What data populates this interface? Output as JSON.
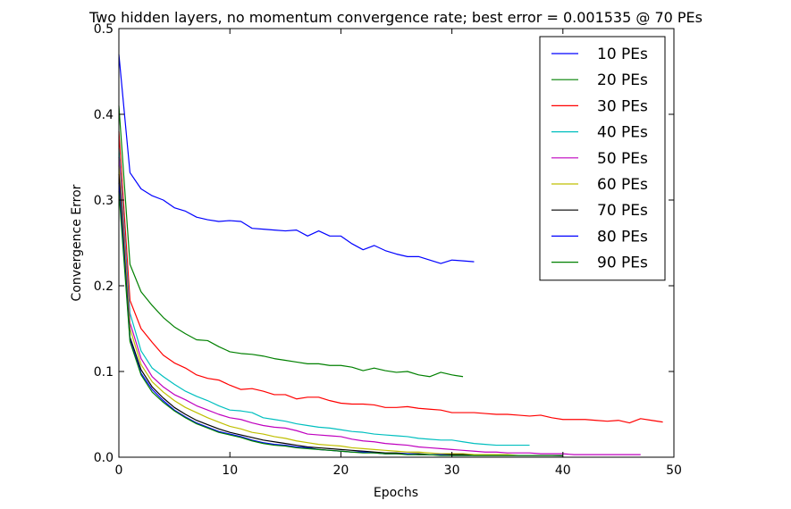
{
  "chart_data": {
    "type": "line",
    "title": "Two hidden layers, no momentum convergence rate; best error = 0.001535 @ 70 PEs",
    "xlabel": "Epochs",
    "ylabel": "Convergence Error",
    "xlim": [
      0,
      50
    ],
    "ylim": [
      0,
      0.5
    ],
    "xticks": [
      0,
      10,
      20,
      30,
      40,
      50
    ],
    "yticks": [
      0.0,
      0.1,
      0.2,
      0.3,
      0.4,
      0.5
    ],
    "xtick_labels": [
      "0",
      "10",
      "20",
      "30",
      "40",
      "50"
    ],
    "ytick_labels": [
      "0.0",
      "0.1",
      "0.2",
      "0.3",
      "0.4",
      "0.5"
    ],
    "grid": false,
    "legend_position": "top-right",
    "series": [
      {
        "name": "10 PEs",
        "color": "#0000ff",
        "x": [
          0,
          1,
          2,
          3,
          4,
          5,
          6,
          7,
          8,
          9,
          10,
          11,
          12,
          13,
          14,
          15,
          16,
          17,
          18,
          19,
          20,
          21,
          22,
          23,
          24,
          25,
          26,
          27,
          28,
          29,
          30,
          31,
          32
        ],
        "values": [
          0.47,
          0.332,
          0.313,
          0.305,
          0.3,
          0.291,
          0.287,
          0.28,
          0.277,
          0.275,
          0.276,
          0.275,
          0.267,
          0.266,
          0.265,
          0.264,
          0.265,
          0.258,
          0.264,
          0.258,
          0.258,
          0.249,
          0.242,
          0.247,
          0.241,
          0.237,
          0.234,
          0.234,
          0.23,
          0.226,
          0.23,
          0.229,
          0.228
        ]
      },
      {
        "name": "20 PEs",
        "color": "#008000",
        "x": [
          0,
          1,
          2,
          3,
          4,
          5,
          6,
          7,
          8,
          9,
          10,
          11,
          12,
          13,
          14,
          15,
          16,
          17,
          18,
          19,
          20,
          21,
          22,
          23,
          24,
          25,
          26,
          27,
          28,
          29,
          30,
          31
        ],
        "values": [
          0.41,
          0.225,
          0.193,
          0.177,
          0.163,
          0.152,
          0.144,
          0.137,
          0.136,
          0.129,
          0.123,
          0.121,
          0.12,
          0.118,
          0.115,
          0.113,
          0.111,
          0.109,
          0.109,
          0.107,
          0.107,
          0.105,
          0.101,
          0.104,
          0.101,
          0.099,
          0.1,
          0.096,
          0.094,
          0.099,
          0.096,
          0.094
        ]
      },
      {
        "name": "30 PEs",
        "color": "#ff0000",
        "x": [
          0,
          1,
          2,
          3,
          4,
          5,
          6,
          7,
          8,
          9,
          10,
          11,
          12,
          13,
          14,
          15,
          16,
          17,
          18,
          19,
          20,
          21,
          22,
          23,
          24,
          25,
          26,
          27,
          28,
          29,
          30,
          31,
          32,
          33,
          34,
          35,
          36,
          37,
          38,
          39,
          40,
          41,
          42,
          43,
          44,
          45,
          46,
          47,
          48,
          49
        ],
        "values": [
          0.38,
          0.183,
          0.15,
          0.134,
          0.119,
          0.11,
          0.104,
          0.096,
          0.092,
          0.09,
          0.084,
          0.079,
          0.08,
          0.077,
          0.073,
          0.073,
          0.068,
          0.07,
          0.07,
          0.066,
          0.063,
          0.062,
          0.062,
          0.061,
          0.058,
          0.058,
          0.059,
          0.057,
          0.056,
          0.055,
          0.052,
          0.052,
          0.052,
          0.051,
          0.05,
          0.05,
          0.049,
          0.048,
          0.049,
          0.046,
          0.044,
          0.044,
          0.044,
          0.043,
          0.042,
          0.043,
          0.04,
          0.045,
          0.043,
          0.041
        ]
      },
      {
        "name": "40 PEs",
        "color": "#00bfbf",
        "x": [
          0,
          1,
          2,
          3,
          4,
          5,
          6,
          7,
          8,
          9,
          10,
          11,
          12,
          13,
          14,
          15,
          16,
          17,
          18,
          19,
          20,
          21,
          22,
          23,
          24,
          25,
          26,
          27,
          28,
          29,
          30,
          31,
          32,
          33,
          34,
          35,
          36,
          37
        ],
        "values": [
          0.36,
          0.168,
          0.124,
          0.104,
          0.094,
          0.085,
          0.077,
          0.071,
          0.066,
          0.06,
          0.055,
          0.054,
          0.052,
          0.046,
          0.044,
          0.042,
          0.039,
          0.037,
          0.035,
          0.034,
          0.032,
          0.03,
          0.029,
          0.027,
          0.026,
          0.025,
          0.024,
          0.022,
          0.021,
          0.02,
          0.02,
          0.018,
          0.016,
          0.015,
          0.014,
          0.014,
          0.014,
          0.014
        ]
      },
      {
        "name": "50 PEs",
        "color": "#bf00bf",
        "x": [
          0,
          1,
          2,
          3,
          4,
          5,
          6,
          7,
          8,
          9,
          10,
          11,
          12,
          13,
          14,
          15,
          16,
          17,
          18,
          19,
          20,
          21,
          22,
          23,
          24,
          25,
          26,
          27,
          28,
          29,
          30,
          31,
          32,
          33,
          34,
          35,
          36,
          37,
          38,
          39,
          40,
          41,
          42,
          43,
          44,
          45,
          46,
          47
        ],
        "values": [
          0.35,
          0.157,
          0.115,
          0.094,
          0.082,
          0.073,
          0.067,
          0.06,
          0.055,
          0.05,
          0.046,
          0.044,
          0.04,
          0.037,
          0.035,
          0.034,
          0.031,
          0.027,
          0.026,
          0.025,
          0.024,
          0.021,
          0.019,
          0.018,
          0.016,
          0.015,
          0.014,
          0.012,
          0.011,
          0.01,
          0.009,
          0.008,
          0.007,
          0.006,
          0.006,
          0.005,
          0.005,
          0.005,
          0.004,
          0.004,
          0.004,
          0.003,
          0.003,
          0.003,
          0.003,
          0.003,
          0.003,
          0.003
        ]
      },
      {
        "name": "60 PEs",
        "color": "#bfbf00",
        "x": [
          0,
          1,
          2,
          3,
          4,
          5,
          6,
          7,
          8,
          9,
          10,
          11,
          12,
          13,
          14,
          15,
          16,
          17,
          18,
          19,
          20,
          21,
          22,
          23,
          24,
          25,
          26,
          27,
          28,
          29,
          30,
          31,
          32,
          33,
          34,
          35,
          36,
          37,
          38,
          39,
          40
        ],
        "values": [
          0.34,
          0.15,
          0.108,
          0.088,
          0.076,
          0.066,
          0.058,
          0.052,
          0.046,
          0.041,
          0.036,
          0.033,
          0.029,
          0.027,
          0.024,
          0.022,
          0.019,
          0.017,
          0.015,
          0.014,
          0.013,
          0.011,
          0.01,
          0.009,
          0.008,
          0.007,
          0.006,
          0.006,
          0.005,
          0.004,
          0.004,
          0.004,
          0.003,
          0.003,
          0.003,
          0.003,
          0.002,
          0.002,
          0.002,
          0.002,
          0.002
        ]
      },
      {
        "name": "70 PEs",
        "color": "#000000",
        "x": [
          0,
          1,
          2,
          3,
          4,
          5,
          6,
          7,
          8,
          9,
          10,
          11,
          12,
          13,
          14,
          15,
          16,
          17,
          18,
          19,
          20,
          21,
          22,
          23,
          24,
          25,
          26,
          27,
          28,
          29,
          30,
          31,
          32,
          33,
          34,
          35,
          36,
          37,
          38,
          39,
          40
        ],
        "values": [
          0.33,
          0.14,
          0.102,
          0.082,
          0.069,
          0.058,
          0.05,
          0.043,
          0.038,
          0.033,
          0.029,
          0.026,
          0.023,
          0.02,
          0.018,
          0.016,
          0.014,
          0.012,
          0.011,
          0.01,
          0.009,
          0.008,
          0.007,
          0.006,
          0.005,
          0.005,
          0.004,
          0.004,
          0.003,
          0.003,
          0.003,
          0.003,
          0.002,
          0.002,
          0.002,
          0.002,
          0.002,
          0.002,
          0.002,
          0.002,
          0.0015
        ]
      },
      {
        "name": "80 PEs",
        "color": "#0000ff",
        "x": [
          0,
          1,
          2,
          3,
          4,
          5,
          6,
          7,
          8,
          9,
          10,
          11,
          12,
          13,
          14,
          15,
          16,
          17,
          18,
          19,
          20,
          21,
          22,
          23,
          24,
          25,
          26,
          27,
          28,
          29,
          30,
          31,
          32,
          33,
          34,
          35,
          36,
          37,
          38,
          39,
          40
        ],
        "values": [
          0.32,
          0.137,
          0.098,
          0.079,
          0.066,
          0.055,
          0.047,
          0.04,
          0.035,
          0.03,
          0.027,
          0.024,
          0.02,
          0.017,
          0.015,
          0.014,
          0.012,
          0.011,
          0.009,
          0.008,
          0.007,
          0.006,
          0.006,
          0.005,
          0.004,
          0.004,
          0.004,
          0.003,
          0.003,
          0.003,
          0.002,
          0.002,
          0.002,
          0.002,
          0.002,
          0.002,
          0.002,
          0.002,
          0.002,
          0.002,
          0.002
        ]
      },
      {
        "name": "90 PEs",
        "color": "#008000",
        "x": [
          0,
          1,
          2,
          3,
          4,
          5,
          6,
          7,
          8,
          9,
          10,
          11,
          12,
          13,
          14,
          15,
          16,
          17,
          18,
          19,
          20,
          21,
          22,
          23,
          24,
          25,
          26,
          27,
          28,
          29,
          30,
          31,
          32,
          33,
          34,
          35,
          36,
          37,
          38,
          39,
          40
        ],
        "values": [
          0.31,
          0.135,
          0.096,
          0.076,
          0.064,
          0.054,
          0.046,
          0.039,
          0.034,
          0.029,
          0.026,
          0.023,
          0.019,
          0.016,
          0.014,
          0.013,
          0.011,
          0.01,
          0.009,
          0.008,
          0.007,
          0.006,
          0.005,
          0.005,
          0.004,
          0.004,
          0.003,
          0.003,
          0.003,
          0.002,
          0.002,
          0.002,
          0.002,
          0.002,
          0.002,
          0.002,
          0.002,
          0.002,
          0.002,
          0.002,
          0.002
        ]
      }
    ]
  }
}
